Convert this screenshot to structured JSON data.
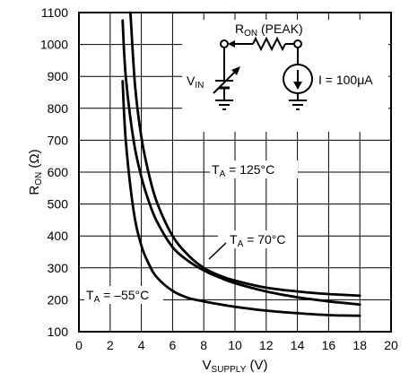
{
  "chart_data": {
    "type": "line",
    "xlabel": {
      "main": "V",
      "sub": "SUPPLY",
      "unit": " (V)"
    },
    "ylabel": {
      "main": "R",
      "sub": "ON",
      "unit": " (Ω)"
    },
    "xlim": [
      0,
      20
    ],
    "ylim": [
      100,
      1100
    ],
    "xticks": [
      "0",
      "2",
      "4",
      "6",
      "8",
      "10",
      "12",
      "14",
      "16",
      "18",
      "20"
    ],
    "yticks": [
      "100",
      "200",
      "300",
      "400",
      "500",
      "600",
      "700",
      "800",
      "900",
      "1000",
      "1100"
    ],
    "grid": true,
    "series": [
      {
        "name": "TA = 125°C",
        "label": {
          "pre": "T",
          "sub": "A",
          "post": " = 125°C"
        },
        "x": [
          3.3,
          3.6,
          4,
          4.5,
          5,
          6,
          7,
          8,
          9,
          10,
          12,
          14,
          16,
          18
        ],
        "y": [
          1100,
          870,
          710,
          590,
          505,
          400,
          340,
          300,
          276,
          260,
          238,
          226,
          218,
          213
        ]
      },
      {
        "name": "TA = 70°C",
        "label": {
          "pre": "T",
          "sub": "A",
          "post": " = 70°C"
        },
        "x": [
          2.8,
          3,
          3.5,
          4,
          4.5,
          5,
          6,
          7,
          8,
          9,
          10,
          12,
          14,
          16,
          18
        ],
        "y": [
          1075,
          900,
          700,
          585,
          505,
          445,
          365,
          322,
          292,
          270,
          252,
          226,
          208,
          195,
          185
        ]
      },
      {
        "name": "TA = –55°C",
        "label": {
          "pre": "T",
          "sub": "A",
          "post": " = –55°C"
        },
        "x": [
          2.8,
          3,
          3.5,
          4,
          4.5,
          5,
          6,
          7,
          8,
          9,
          10,
          12,
          14,
          16,
          18
        ],
        "y": [
          885,
          700,
          480,
          370,
          310,
          270,
          228,
          206,
          195,
          186,
          178,
          166,
          158,
          152,
          150
        ]
      }
    ],
    "inset": {
      "peak_label": {
        "main": "R",
        "sub": "ON",
        "post": " (PEAK)"
      },
      "vin_label": {
        "main": "V",
        "sub": "IN"
      },
      "current_label": "I = 100μA"
    }
  }
}
